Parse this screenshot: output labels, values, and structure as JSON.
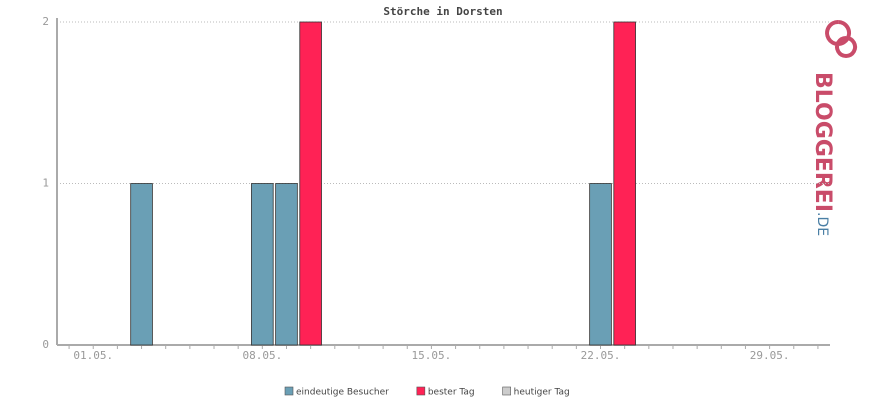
{
  "chart_data": {
    "type": "bar",
    "title": "Störche in Dorsten",
    "categories": [
      null,
      "01.05.",
      null,
      null,
      null,
      null,
      null,
      null,
      "08.05.",
      null,
      null,
      null,
      null,
      null,
      null,
      "15.05.",
      null,
      null,
      null,
      null,
      null,
      null,
      "22.05.",
      null,
      null,
      null,
      null,
      null,
      null,
      "29.05.",
      null,
      null
    ],
    "series": [
      {
        "name": "eindeutige Besucher",
        "color": "#6a9fb5",
        "values": [
          0,
          0,
          0,
          1,
          0,
          0,
          0,
          0,
          1,
          1,
          null,
          0,
          0,
          0,
          0,
          0,
          0,
          0,
          0,
          0,
          0,
          0,
          1,
          null,
          0,
          0,
          0,
          0,
          0,
          0,
          0,
          0
        ]
      },
      {
        "name": "bester Tag",
        "color": "#ff2255",
        "values": [
          null,
          null,
          null,
          null,
          null,
          null,
          null,
          null,
          null,
          null,
          2,
          null,
          null,
          null,
          null,
          null,
          null,
          null,
          null,
          null,
          null,
          null,
          null,
          2,
          null,
          null,
          null,
          null,
          null,
          null,
          null,
          null
        ]
      },
      {
        "name": "heutiger Tag",
        "color": "#cccccc",
        "values": [
          null,
          null,
          null,
          null,
          null,
          null,
          null,
          null,
          null,
          null,
          null,
          null,
          null,
          null,
          null,
          null,
          null,
          null,
          null,
          null,
          null,
          null,
          null,
          null,
          null,
          null,
          null,
          null,
          null,
          null,
          null,
          null
        ]
      }
    ],
    "ylim": [
      0,
      2
    ],
    "yticks": [
      0,
      1,
      2
    ],
    "grid": true,
    "logo": {
      "main": "BLOGGEREI",
      "suffix": ".DE"
    }
  }
}
